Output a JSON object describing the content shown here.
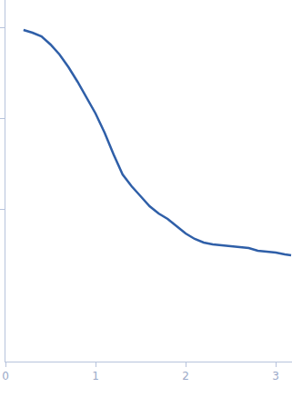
{
  "chart_data": {
    "type": "line",
    "color": "#2f5fa8",
    "x": [
      0.2,
      0.3,
      0.4,
      0.5,
      0.6,
      0.7,
      0.8,
      0.9,
      1.0,
      1.1,
      1.2,
      1.3,
      1.4,
      1.5,
      1.6,
      1.7,
      1.8,
      1.9,
      2.0,
      2.1,
      2.2,
      2.3,
      2.4,
      2.5,
      2.6,
      2.7,
      2.8,
      2.9,
      3.0,
      3.1,
      3.17
    ],
    "values": [
      3.65,
      3.62,
      3.58,
      3.49,
      3.38,
      3.24,
      3.08,
      2.91,
      2.73,
      2.52,
      2.28,
      2.06,
      1.93,
      1.82,
      1.71,
      1.63,
      1.57,
      1.49,
      1.41,
      1.35,
      1.31,
      1.29,
      1.28,
      1.27,
      1.26,
      1.25,
      1.22,
      1.21,
      1.2,
      1.18,
      1.17
    ],
    "xlim": [
      0,
      3.18
    ],
    "xticks": [
      0,
      1,
      2,
      3
    ],
    "ylim": [
      0,
      3.98
    ],
    "yticks": [
      1.68,
      2.68,
      3.68
    ],
    "grid": false,
    "tick_labels": "x"
  }
}
